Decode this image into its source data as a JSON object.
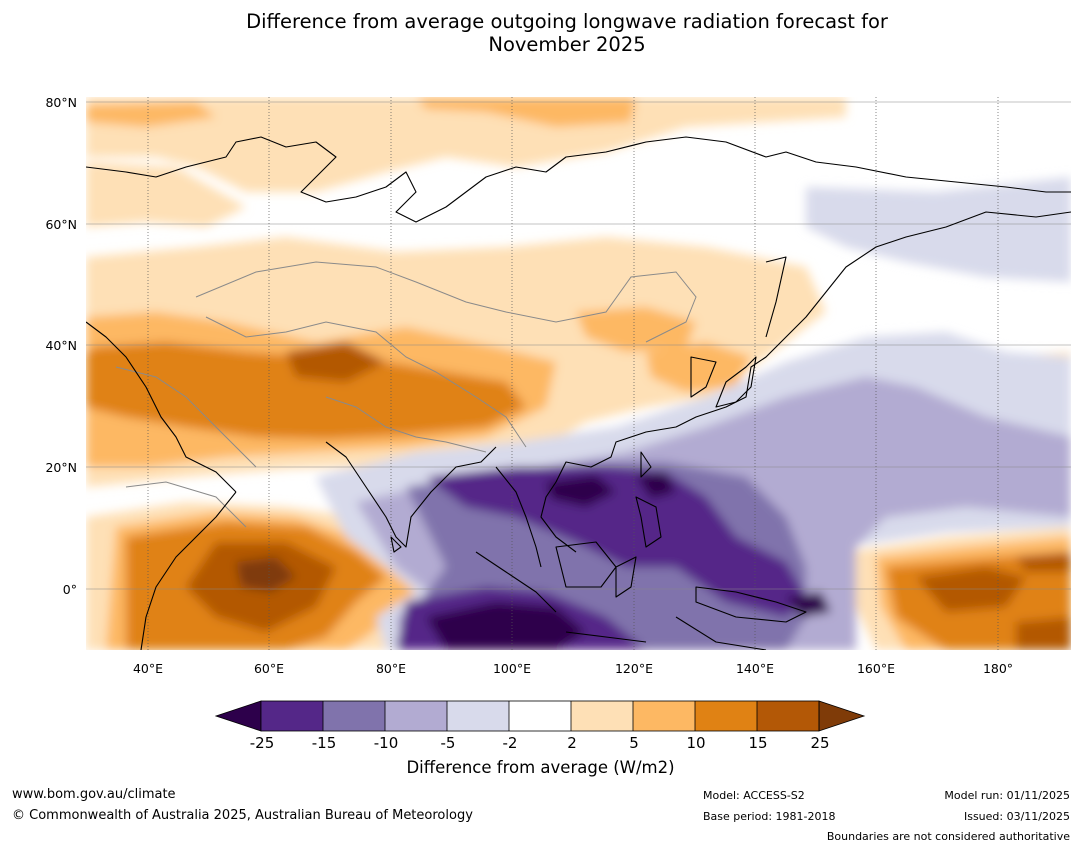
{
  "title_line1": "Difference from average outgoing longwave radiation forecast for",
  "title_line2": "November 2025",
  "lat_labels": [
    "80°N",
    "60°N",
    "40°N",
    "20°N",
    "0°"
  ],
  "lon_labels": [
    "40°E",
    "60°E",
    "80°E",
    "100°E",
    "120°E",
    "140°E",
    "160°E",
    "180°"
  ],
  "colorbar": {
    "label": "Difference from average (W/m2)",
    "ticks": [
      "-25",
      "-15",
      "-10",
      "-5",
      "-2",
      "2",
      "5",
      "10",
      "15",
      "25"
    ],
    "colors": {
      "lt_minus25": "#2d004b",
      "minus25_minus15": "#542788",
      "minus15_minus10": "#8073ac",
      "minus10_minus5": "#b2abd2",
      "minus5_minus2": "#d8daeb",
      "minus2_2": "#ffffff",
      "2_5": "#fee0b6",
      "5_10": "#fdb863",
      "10_15": "#e08214",
      "15_25": "#b35806",
      "gt_25": "#7f3b08"
    }
  },
  "footer": {
    "website": "www.bom.gov.au/climate",
    "copyright": "© Commonwealth of Australia 2025, Australian Bureau of Meteorology",
    "model": "Model: ACCESS-S2",
    "base_period": "Base period: 1981-2018",
    "model_run": "Model run: 01/11/2025",
    "issued": "Issued: 03/11/2025",
    "disclaimer": "Boundaries are not considered authoritative"
  }
}
